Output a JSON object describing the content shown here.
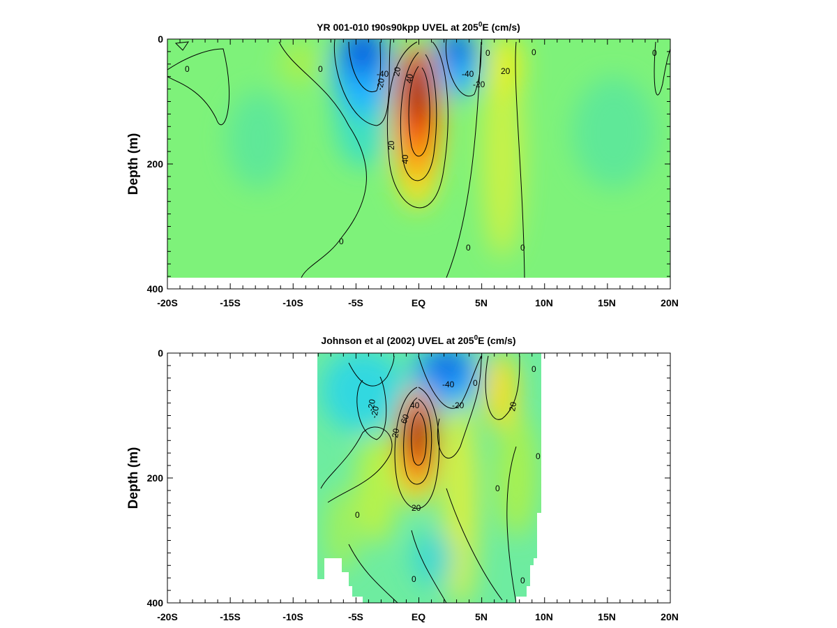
{
  "chart_data": [
    {
      "type": "heatmap",
      "title_prefix": "YR 001-010 t90s90kpp UVEL at 205",
      "title_sup": "0",
      "title_suffix": "E (cm/s)",
      "ylabel": "Depth (m)",
      "x_ticks": [
        "-20S",
        "-15S",
        "-10S",
        "-5S",
        "EQ",
        "5N",
        "10N",
        "15N",
        "20N"
      ],
      "y_ticks": [
        "0",
        "200",
        "400"
      ],
      "xlim": [
        -20,
        20
      ],
      "ylim": [
        0,
        400
      ],
      "y_inverted": true,
      "data_coverage": {
        "lat_range": [
          -20,
          20
        ],
        "max_depth": 380
      },
      "contour_levels": [
        -40,
        -20,
        0,
        20,
        40,
        60
      ],
      "contour_labels": [
        "0",
        "0",
        "0",
        "-20",
        "-40",
        "20",
        "40",
        "20",
        "40",
        "-40",
        "-20",
        "20",
        "0",
        "0",
        "0",
        "0",
        "0"
      ],
      "features": [
        {
          "kind": "core",
          "lat": 0,
          "depth": 100,
          "value": 90
        },
        {
          "kind": "core",
          "lat": -4.5,
          "depth": 40,
          "value": -60
        },
        {
          "kind": "core",
          "lat": 3,
          "depth": 35,
          "value": -45
        },
        {
          "kind": "core",
          "lat": 7,
          "depth": 60,
          "value": 25
        },
        {
          "kind": "core",
          "lat": -13,
          "depth": 150,
          "value": -8
        },
        {
          "kind": "core",
          "lat": 14,
          "depth": 130,
          "value": -10
        }
      ]
    },
    {
      "type": "heatmap",
      "title_prefix": "Johnson et al (2002) UVEL at 205",
      "title_sup": "0",
      "title_suffix": "E (cm/s)",
      "ylabel": "Depth (m)",
      "x_ticks": [
        "-20S",
        "-15S",
        "-10S",
        "-5S",
        "EQ",
        "5N",
        "10N",
        "15N",
        "20N"
      ],
      "y_ticks": [
        "0",
        "200",
        "400"
      ],
      "xlim": [
        -20,
        20
      ],
      "ylim": [
        0,
        400
      ],
      "y_inverted": true,
      "data_coverage": {
        "lat_range": [
          -8,
          10
        ],
        "max_depth": 400
      },
      "contour_levels": [
        -40,
        -20,
        0,
        20,
        40,
        60
      ],
      "contour_labels": [
        "-40",
        "-20",
        "-20",
        "20",
        "40",
        "60",
        "20",
        "-20",
        "20",
        "0",
        "0",
        "0",
        "0",
        "0",
        "0",
        "0"
      ],
      "features": [
        {
          "kind": "core",
          "lat": 0,
          "depth": 135,
          "value": 90
        },
        {
          "kind": "core",
          "lat": 2.5,
          "depth": 30,
          "value": -50
        },
        {
          "kind": "core",
          "lat": -3,
          "depth": 50,
          "value": -25
        },
        {
          "kind": "core",
          "lat": 7,
          "depth": 60,
          "value": 30
        },
        {
          "kind": "core",
          "lat": 3.5,
          "depth": 280,
          "value": 15
        }
      ]
    }
  ]
}
